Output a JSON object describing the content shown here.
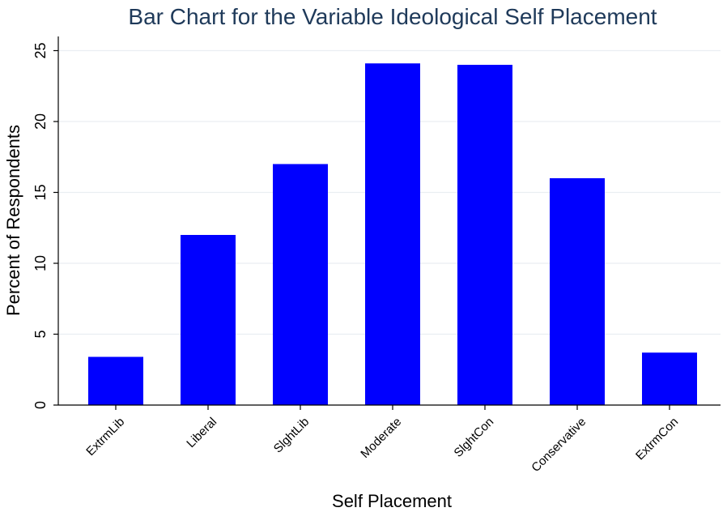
{
  "chart_data": {
    "type": "bar",
    "title": "Bar Chart for the Variable Ideological Self Placement",
    "xlabel": "Self Placement",
    "ylabel": "Percent of Respondents",
    "categories": [
      "ExtrmLib",
      "Liberal",
      "SlghtLib",
      "Moderate",
      "SlghtCon",
      "Conservative",
      "ExtrmCon"
    ],
    "values": [
      3.4,
      12.0,
      17.0,
      24.1,
      24.0,
      16.0,
      3.7
    ],
    "ylim": [
      0,
      26
    ],
    "yticks": [
      0,
      5,
      10,
      15,
      20,
      25
    ],
    "grid": true,
    "bar_color": "#0000ff"
  }
}
